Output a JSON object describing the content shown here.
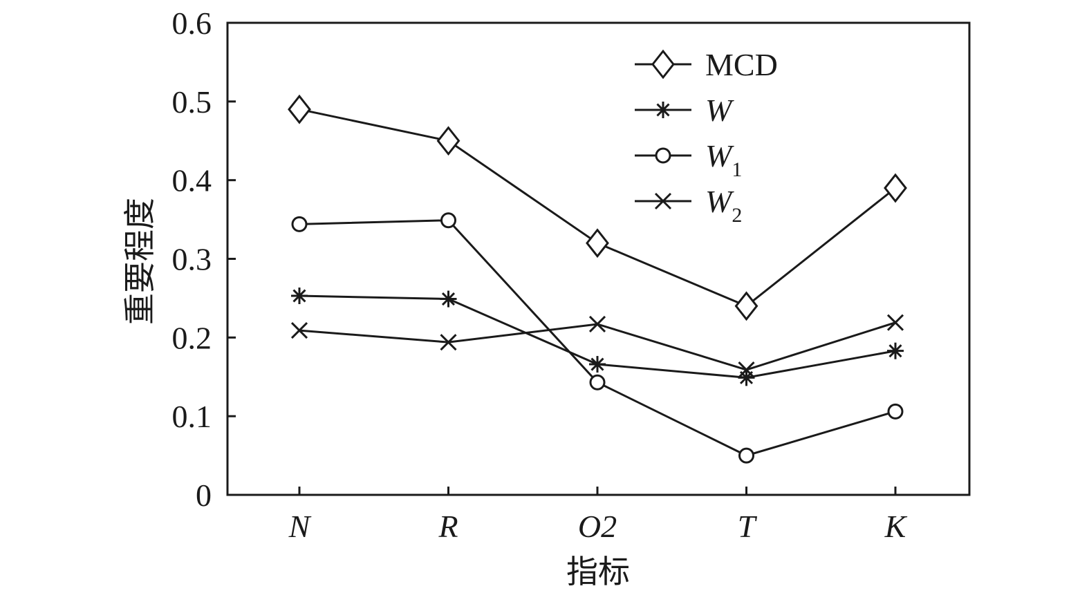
{
  "chart_data": {
    "type": "line",
    "categories": [
      "N",
      "R",
      "O2",
      "T",
      "K"
    ],
    "xlabel": "指标",
    "ylabel": "重要程度",
    "ylim": [
      0,
      0.6
    ],
    "yticks": [
      "0",
      "0.1",
      "0.2",
      "0.3",
      "0.4",
      "0.5",
      "0.6"
    ],
    "ytick_values": [
      0,
      0.1,
      0.2,
      0.3,
      0.4,
      0.5,
      0.6
    ],
    "grid": false,
    "legend_position": "top-right",
    "series": [
      {
        "name": "MCD",
        "legend_main": "MCD",
        "legend_sub": "",
        "italic": false,
        "marker": "diamond",
        "values": [
          0.49,
          0.45,
          0.32,
          0.24,
          0.39
        ]
      },
      {
        "name": "W",
        "legend_main": "W",
        "legend_sub": "",
        "italic": true,
        "marker": "asterisk",
        "values": [
          0.253,
          0.249,
          0.166,
          0.149,
          0.183
        ]
      },
      {
        "name": "W1",
        "legend_main": "W",
        "legend_sub": "1",
        "italic": true,
        "marker": "circle",
        "values": [
          0.344,
          0.349,
          0.143,
          0.05,
          0.106
        ]
      },
      {
        "name": "W2",
        "legend_main": "W",
        "legend_sub": "2",
        "italic": true,
        "marker": "cross",
        "values": [
          0.209,
          0.194,
          0.217,
          0.159,
          0.219
        ]
      }
    ]
  }
}
